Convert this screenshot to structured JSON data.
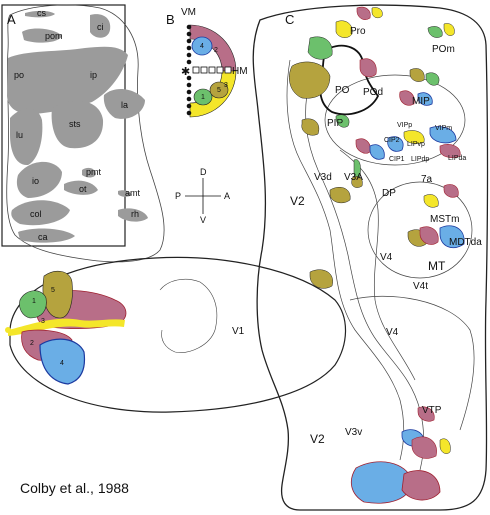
{
  "panels": {
    "a": "A",
    "b": "B",
    "c": "C"
  },
  "sulci": {
    "cs": "cs",
    "pom": "pom",
    "ci": "ci",
    "po": "po",
    "ip": "ip",
    "la": "la",
    "lu": "lu",
    "sts": "sts",
    "pmt": "pmt",
    "io": "io",
    "ot": "ot",
    "amt": "amt",
    "rh": "rh",
    "col": "col",
    "ca": "ca"
  },
  "legend_b": {
    "vm": "VM",
    "hm": "HM",
    "n1": "1",
    "n2": "2",
    "n3": "3",
    "n4": "4",
    "n5": "5"
  },
  "compass": {
    "d": "D",
    "v": "V",
    "p": "P",
    "a": "A"
  },
  "v1_map": {
    "label": "V1",
    "n1": "1",
    "n2": "2",
    "n3": "3",
    "n4": "4",
    "n5": "5"
  },
  "flatmap": {
    "pro": "Pro",
    "pom": "POm",
    "po": "PO",
    "pod": "POd",
    "mip": "MIP",
    "pip": "PIP",
    "vipp": "VIPp",
    "vipm": "VIPm",
    "lipvp": "LIPvp",
    "cip2": "CIP2",
    "cip1": "CIP1",
    "lipdp": "LIPdp",
    "lipda": "LIPda",
    "v3d": "V3d",
    "v3a": "V3A",
    "v2_upper": "V2",
    "dp": "DP",
    "a7a": "7a",
    "mstm": "MSTm",
    "mdtda": "MDTda",
    "mt": "MT",
    "v4_upper": "V4",
    "v4t": "V4t",
    "v4_lower": "V4",
    "vtp": "VTP",
    "v2_lower": "V2",
    "v3v": "V3v"
  },
  "credit": "Colby et al., 1988",
  "colors": {
    "sulcus_gray": "#9b9b9b",
    "field1_green": "#6cc06c",
    "field2_mauve": "#b86e88",
    "field3_yellow": "#f4e62a",
    "field4_blue": "#6aaee6",
    "field5_olive": "#b5a33e",
    "outline": "#222222",
    "blue_edge": "#1c3aa0",
    "red_edge": "#a02030"
  }
}
